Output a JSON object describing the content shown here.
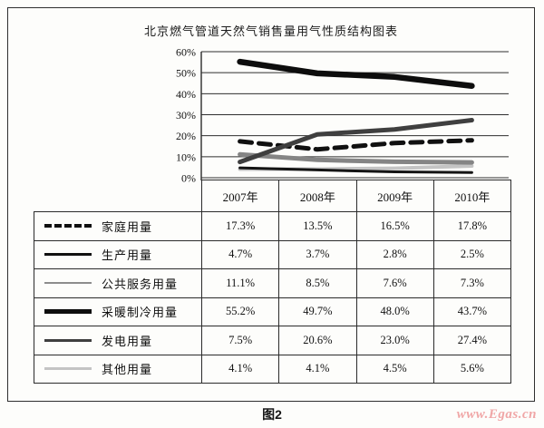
{
  "figure": {
    "title": "北京燃气管道天然气销售量用气性质结构图表",
    "caption": "图2",
    "watermark": "www.Egas.cn"
  },
  "chart_data": {
    "type": "line",
    "title": "北京燃气管道天然气销售量用气性质结构图表",
    "x_categories": [
      "2007年",
      "2008年",
      "2009年",
      "2010年"
    ],
    "ylim": [
      0,
      60
    ],
    "ytick_step": 10,
    "ytick_labels": [
      "60%",
      "50%",
      "40%",
      "30%",
      "20%",
      "10%",
      "0%"
    ],
    "grid": true,
    "legend_position": "table-left-column",
    "series": [
      {
        "key": "household",
        "name": "家庭用量",
        "values": [
          17.3,
          13.5,
          16.5,
          17.8
        ],
        "color": "#101010",
        "width": 5,
        "dash": "13 8"
      },
      {
        "key": "production",
        "name": "生产用量",
        "values": [
          4.7,
          3.7,
          2.8,
          2.5
        ],
        "color": "#141414",
        "width": 3,
        "dash": ""
      },
      {
        "key": "public-service",
        "name": "公共服务用量",
        "values": [
          11.1,
          8.5,
          7.6,
          7.3
        ],
        "color": "#858585",
        "width": 5,
        "dash": ""
      },
      {
        "key": "heating-cooling",
        "name": "采暖制冷用量",
        "values": [
          55.2,
          49.7,
          48.0,
          43.7
        ],
        "color": "#0d0d0d",
        "width": 6.5,
        "dash": ""
      },
      {
        "key": "power-generation",
        "name": "发电用量",
        "values": [
          7.5,
          20.6,
          23.0,
          27.4
        ],
        "color": "#3f3f3f",
        "width": 5,
        "dash": ""
      },
      {
        "key": "other",
        "name": "其他用量",
        "values": [
          4.1,
          4.1,
          4.5,
          5.6
        ],
        "color": "#c4c4c4",
        "width": 4,
        "dash": ""
      }
    ],
    "draw_order": [
      5,
      2,
      1,
      0,
      4,
      3
    ]
  },
  "table": {
    "rows": [
      {
        "label": "家庭用量",
        "values": [
          "17.3%",
          "13.5%",
          "16.5%",
          "17.8%"
        ]
      },
      {
        "label": "生产用量",
        "values": [
          "4.7%",
          "3.7%",
          "2.8%",
          "2.5%"
        ]
      },
      {
        "label": "公共服务用量",
        "values": [
          "11.1%",
          "8.5%",
          "7.6%",
          "7.3%"
        ]
      },
      {
        "label": "采暖制冷用量",
        "values": [
          "55.2%",
          "49.7%",
          "48.0%",
          "43.7%"
        ]
      },
      {
        "label": "发电用量",
        "values": [
          "7.5%",
          "20.6%",
          "23.0%",
          "27.4%"
        ]
      },
      {
        "label": "其他用量",
        "values": [
          "4.1%",
          "4.1%",
          "4.5%",
          "5.6%"
        ]
      }
    ]
  },
  "colors": {
    "border": "#2b2b2b",
    "text": "#111111",
    "watermark_pink": "#f0a6a6",
    "paper": "#fdfdfb"
  }
}
